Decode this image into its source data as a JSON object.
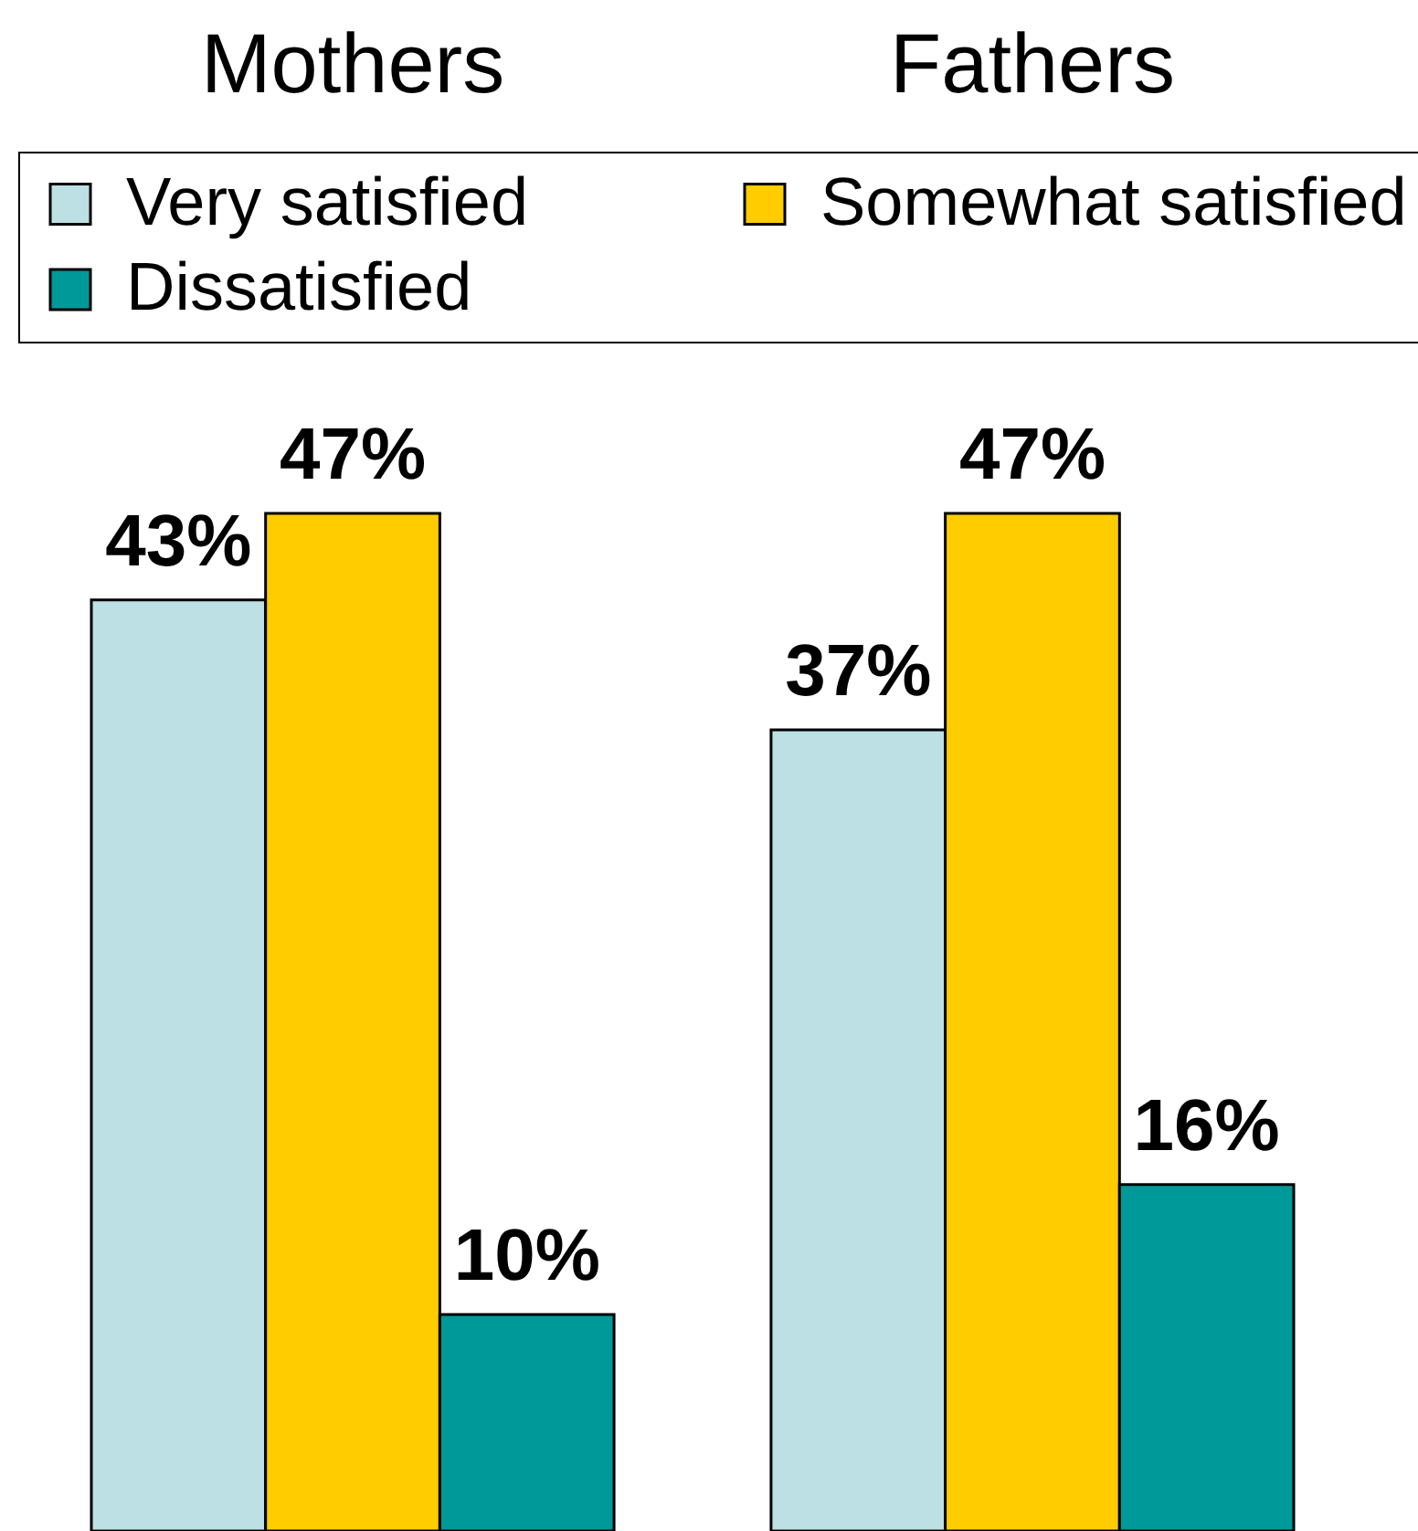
{
  "chart_data": {
    "type": "bar",
    "categories": [
      "Mothers",
      "Fathers"
    ],
    "series": [
      {
        "name": "Very satisfied",
        "color": "#bce0e3",
        "values": [
          43,
          37
        ],
        "value_labels": [
          "43%",
          "37%"
        ]
      },
      {
        "name": "Somewhat satisfied",
        "color": "#ffcc00",
        "values": [
          47,
          47
        ],
        "value_labels": [
          "47%",
          "47%"
        ]
      },
      {
        "name": "Dissatisfied",
        "color": "#009999",
        "values": [
          10,
          16
        ],
        "value_labels": [
          "10%",
          "16%"
        ]
      }
    ],
    "legend": "top",
    "tick_labels": "x"
  }
}
